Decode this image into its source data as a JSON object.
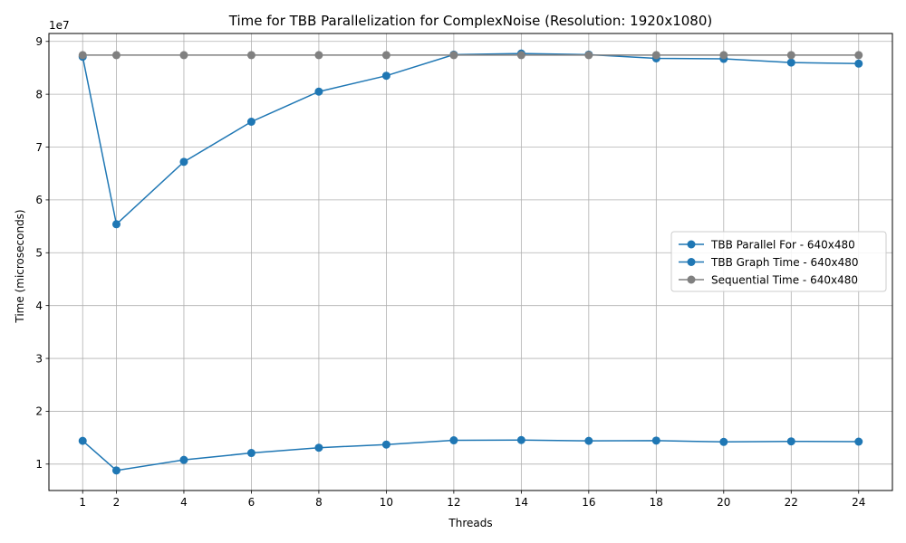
{
  "chart_data": {
    "type": "line",
    "title": "Time for TBB Parallelization for ComplexNoise (Resolution: 1920x1080)",
    "xlabel": "Threads",
    "ylabel": "Time (microseconds)",
    "y_offset_text": "1e7",
    "y_scale": 10000000,
    "x": [
      1,
      2,
      4,
      6,
      8,
      10,
      12,
      14,
      16,
      18,
      20,
      22,
      24
    ],
    "xticks": [
      1,
      2,
      4,
      6,
      8,
      10,
      12,
      14,
      16,
      18,
      20,
      22,
      24
    ],
    "yticks": [
      1,
      2,
      3,
      4,
      5,
      6,
      7,
      8,
      9
    ],
    "xlim": [
      0,
      25
    ],
    "ylim": [
      5000000,
      91500000
    ],
    "grid": true,
    "legend_position": "center-right",
    "series": [
      {
        "name": "TBB Parallel For - 640x480",
        "color": "#1f77b4",
        "values": [
          87100000,
          55400000,
          67200000,
          74800000,
          80500000,
          83500000,
          87500000,
          87700000,
          87500000,
          86800000,
          86700000,
          86000000,
          85800000
        ]
      },
      {
        "name": "TBB Graph Time - 640x480",
        "color": "#1f77b4",
        "values": [
          14400000,
          8800000,
          10800000,
          12100000,
          13100000,
          13700000,
          14500000,
          14550000,
          14400000,
          14450000,
          14200000,
          14300000,
          14250000
        ]
      },
      {
        "name": "Sequential Time - 640x480",
        "color": "#808080",
        "values": [
          87400000,
          87400000,
          87400000,
          87400000,
          87400000,
          87400000,
          87400000,
          87400000,
          87400000,
          87400000,
          87400000,
          87400000,
          87400000
        ]
      }
    ]
  }
}
